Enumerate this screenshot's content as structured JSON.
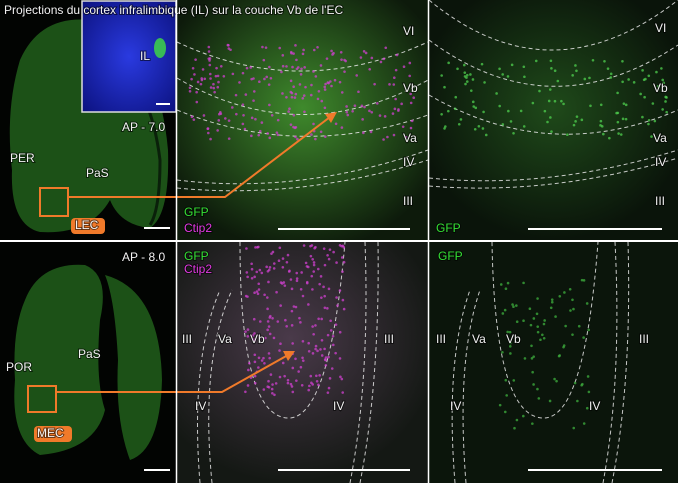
{
  "title": "Projections du cortex infralimbique (IL) sur la couche Vb de l'EC",
  "rows": [
    {
      "overview": {
        "section": "AP - 7.0",
        "labels": [
          "PER",
          "PaS"
        ],
        "box_label": "LEC",
        "inset_label": "IL"
      },
      "merge": {
        "channels": [
          "GFP",
          "Ctip2"
        ],
        "layers": [
          "VI",
          "Vb",
          "Va",
          "IV",
          "III"
        ]
      },
      "gfp": {
        "channels": [
          "GFP"
        ],
        "layers": [
          "VI",
          "Vb",
          "Va",
          "IV",
          "III"
        ]
      }
    },
    {
      "overview": {
        "section": "AP - 8.0",
        "labels": [
          "POR",
          "PaS"
        ],
        "box_label": "MEC"
      },
      "merge": {
        "channels": [
          "GFP",
          "Ctip2"
        ],
        "layers": [
          "III",
          "Va",
          "Vb",
          "III",
          "IV",
          "IV"
        ]
      },
      "gfp": {
        "channels": [
          "GFP"
        ],
        "layers": [
          "III",
          "Va",
          "Vb",
          "III",
          "IV",
          "IV"
        ]
      }
    }
  ]
}
